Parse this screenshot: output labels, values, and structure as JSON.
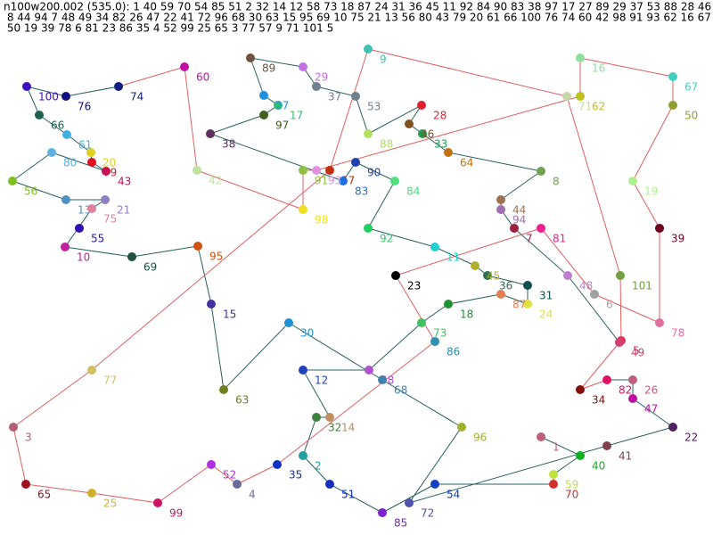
{
  "header": {
    "lines": [
      "n100w200.002 (535.0): 1 40 59 70 54 85 51 2 32 14 12 58 73 18 87 24 31 36 45 11 92 84 90 83 38 97 17 27 89 29 37 53 88 28 46 33 64",
      " 8 44 94 7 48 49 34 82 26 47 22 41 72 96 68 30 63 15 95 69 10 75 21 13 56 80 43 79 20 61 66 100 76 74 60 42 98 91 93 62 16 67",
      " 50 19 39 78 6 81 23 86 35 4 52 99 25 65 3 77 57 9 71 101 5"
    ]
  },
  "nodes": [
    "1",
    "2",
    "3",
    "4",
    "5",
    "6",
    "7",
    "8",
    "9",
    "10",
    "11",
    "12",
    "13",
    "14",
    "15",
    "16",
    "17",
    "18",
    "19",
    "20",
    "21",
    "22",
    "23",
    "24",
    "25",
    "26",
    "27",
    "28",
    "29",
    "30",
    "31",
    "32",
    "33",
    "34",
    "35",
    "36",
    "37",
    "38",
    "39",
    "40",
    "41",
    "42",
    "43",
    "44",
    "45",
    "46",
    "47",
    "48",
    "49",
    "50",
    "51",
    "52",
    "53",
    "54",
    "55",
    "56",
    "57",
    "58",
    "59",
    "60",
    "61",
    "62",
    "63",
    "64",
    "65",
    "66",
    "67",
    "68",
    "69",
    "70",
    "71",
    "72",
    "73",
    "74",
    "75",
    "76",
    "77",
    "78",
    "79",
    "80",
    "81",
    "82",
    "83",
    "84",
    "85",
    "86",
    "87",
    "88",
    "89",
    "90",
    "91",
    "92",
    "93",
    "94",
    "95",
    "96",
    "97",
    "98",
    "99",
    "100",
    "101"
  ]
}
